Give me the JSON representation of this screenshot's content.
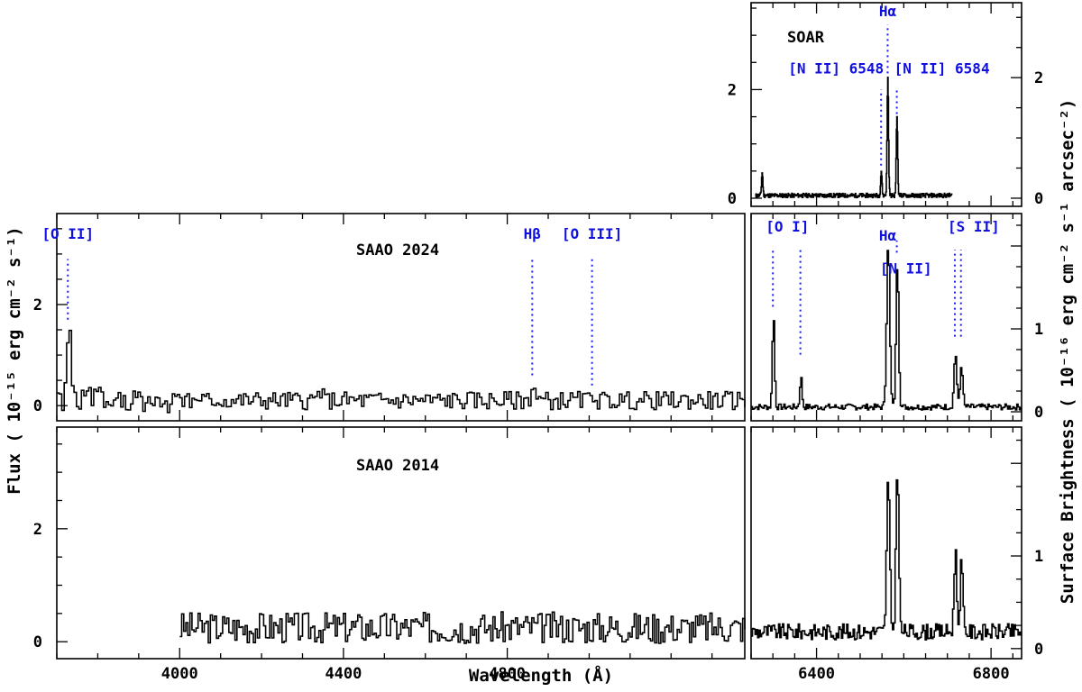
{
  "chart_data": {
    "type": "line",
    "xlabel": "Wavelength (Å)",
    "ylabel_left": "Flux ( 10⁻¹⁵ erg cm⁻² s⁻¹)",
    "ylabel_right": "Surface Brightness ( 10⁻¹⁶ erg cm⁻² s⁻¹ arcsec⁻²)",
    "colors": {
      "spectrum": "#000000",
      "lines": "#1a1aff"
    },
    "panels": [
      {
        "id": "soar",
        "title": "SOAR",
        "xlim": [
          6250,
          6870
        ],
        "ylim": [
          -0.15,
          3.6
        ],
        "x_ticks": [
          6400,
          6800
        ],
        "x_tick_labels_shown": false,
        "y_ticks_left": [
          0,
          2
        ],
        "y_tick_labels_left": [
          "0",
          "2"
        ],
        "y_ticks_right_value": [
          0,
          2.22
        ],
        "y_tick_labels_right": [
          "0",
          "2"
        ],
        "data_xrange": [
          6260,
          6710
        ],
        "baseline": 0.05,
        "noise": 0.04,
        "seed": 11,
        "peaks": [
          {
            "x": 6275,
            "height": 0.42,
            "sigma": 1.5
          },
          {
            "x": 6548,
            "height": 0.45,
            "sigma": 1.5
          },
          {
            "x": 6563,
            "height": 2.2,
            "sigma": 1.6
          },
          {
            "x": 6584,
            "height": 1.45,
            "sigma": 1.6
          }
        ],
        "lines": [
          {
            "label": "Hα",
            "x": 6563,
            "y0": 2.3,
            "y1": 3.2,
            "label_anchor": "middle",
            "label_y": 3.35
          },
          {
            "label": "[N II] 6548",
            "x": 6548,
            "y0": 0.6,
            "y1": 2.0,
            "label_anchor": "end",
            "label_y": 2.3
          },
          {
            "label": "[N II] 6584",
            "x": 6584,
            "y0": 1.55,
            "y1": 2.0,
            "label_anchor": "start",
            "label_y": 2.3
          }
        ]
      },
      {
        "id": "saao2024-blue",
        "title": "SAAO 2024",
        "xlim": [
          3700,
          5380
        ],
        "ylim": [
          -0.3,
          3.8
        ],
        "x_ticks": [
          4000,
          4400,
          4800
        ],
        "x_tick_labels_shown": false,
        "y_ticks_left": [
          0,
          2
        ],
        "y_tick_labels_left": [
          "0",
          "2"
        ],
        "data_xrange": [
          3700,
          5380
        ],
        "baseline": 0.1,
        "noise": 0.18,
        "seed": 5,
        "step": 6,
        "peaks": [
          {
            "x": 3727,
            "height": 1.55,
            "sigma": 5
          },
          {
            "x": 3990,
            "height": 0.3,
            "sigma": 6
          },
          {
            "x": 4340,
            "height": 0.2,
            "sigma": 5
          },
          {
            "x": 4861,
            "height": 0.3,
            "sigma": 5
          },
          {
            "x": 5007,
            "height": 0.15,
            "sigma": 5
          }
        ],
        "lines": [
          {
            "label": "[O II]",
            "x": 3727,
            "y0": 1.7,
            "y1": 2.9,
            "label_anchor": "middle",
            "label_y": 3.3
          },
          {
            "label": "Hβ",
            "x": 4861,
            "y0": 0.6,
            "y1": 2.9,
            "label_anchor": "middle",
            "label_y": 3.3
          },
          {
            "label": "[O III]",
            "x": 5007,
            "y0": 0.4,
            "y1": 2.9,
            "label_anchor": "middle",
            "label_y": 3.3
          }
        ]
      },
      {
        "id": "saao2024-red",
        "xlim": [
          6250,
          6870
        ],
        "ylim": [
          -0.15,
          3.3
        ],
        "x_ticks": [
          6400,
          6800
        ],
        "x_tick_labels_shown": false,
        "y_ticks_right_value": [
          0,
          1.38
        ],
        "y_tick_labels_right": [
          "0",
          "1"
        ],
        "data_xrange": [
          6250,
          6870
        ],
        "baseline": 0.08,
        "noise": 0.05,
        "seed": 7,
        "step": 3,
        "peaks": [
          {
            "x": 6300,
            "height": 1.55,
            "sigma": 2.5
          },
          {
            "x": 6363,
            "height": 0.5,
            "sigma": 2.5
          },
          {
            "x": 6563,
            "height": 2.75,
            "sigma": 3.5
          },
          {
            "x": 6584,
            "height": 2.45,
            "sigma": 3
          },
          {
            "x": 6717,
            "height": 0.9,
            "sigma": 3
          },
          {
            "x": 6731,
            "height": 0.7,
            "sigma": 3
          }
        ],
        "lines": [
          {
            "label": "[O I]",
            "x": 6300,
            "y0": 1.75,
            "y1": 2.7,
            "label_anchor": "start",
            "label_y": 3.0,
            "label_dx": -8
          },
          {
            "x": 6363,
            "y0": 0.95,
            "y1": 2.7
          },
          {
            "label": "Hα",
            "x": 6563,
            "y0": 2.85,
            "y1": 2.85,
            "label_anchor": "middle",
            "label_y": 2.85
          },
          {
            "label": "[N II]",
            "x": 6584,
            "y0": 2.65,
            "y1": 2.85,
            "label_anchor": "middle",
            "label_y": 2.3,
            "label_x": 6605
          },
          {
            "label": "[S II]",
            "x": 6717,
            "y0": 1.25,
            "y1": 2.7,
            "label_anchor": "start",
            "label_y": 3.0,
            "label_dx": -8
          },
          {
            "x": 6731,
            "y0": 1.25,
            "y1": 2.7
          }
        ]
      },
      {
        "id": "saao2014-blue",
        "title": "SAAO 2014",
        "xlim": [
          3700,
          5380
        ],
        "ylim": [
          -0.3,
          3.8
        ],
        "x_ticks": [
          4000,
          4400,
          4800
        ],
        "x_tick_labels_shown": true,
        "x_tick_labels": [
          "4000",
          "4400",
          "4800"
        ],
        "y_ticks_left": [
          0,
          2
        ],
        "y_tick_labels_left": [
          "0",
          "2"
        ],
        "data_xrange": [
          4000,
          5380
        ],
        "baseline": 0.25,
        "noise": 0.28,
        "seed": 3,
        "step": 5,
        "peaks": [],
        "lines": []
      },
      {
        "id": "saao2014-red",
        "xlim": [
          6250,
          6870
        ],
        "ylim": [
          -0.15,
          3.3
        ],
        "x_ticks": [
          6400,
          6800
        ],
        "x_tick_labels_shown": true,
        "x_tick_labels": [
          "6400",
          "6800"
        ],
        "y_ticks_right_value": [
          0,
          1.38
        ],
        "y_tick_labels_right": [
          "0",
          "1"
        ],
        "data_xrange": [
          6250,
          6870
        ],
        "baseline": 0.25,
        "noise": 0.12,
        "seed": 9,
        "step": 3,
        "peaks": [
          {
            "x": 6563,
            "height": 2.25,
            "sigma": 3.5
          },
          {
            "x": 6584,
            "height": 2.5,
            "sigma": 3.2
          },
          {
            "x": 6717,
            "height": 1.2,
            "sigma": 3
          },
          {
            "x": 6731,
            "height": 1.05,
            "sigma": 3
          }
        ],
        "lines": []
      }
    ]
  }
}
